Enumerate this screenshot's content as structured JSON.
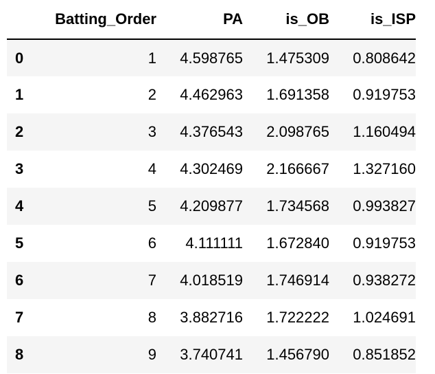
{
  "table": {
    "columns": [
      "",
      "Batting_Order",
      "PA",
      "is_OB",
      "is_ISP"
    ],
    "rows": [
      {
        "index": "0",
        "cells": [
          "1",
          "4.598765",
          "1.475309",
          "0.808642"
        ]
      },
      {
        "index": "1",
        "cells": [
          "2",
          "4.462963",
          "1.691358",
          "0.919753"
        ]
      },
      {
        "index": "2",
        "cells": [
          "3",
          "4.376543",
          "2.098765",
          "1.160494"
        ]
      },
      {
        "index": "3",
        "cells": [
          "4",
          "4.302469",
          "2.166667",
          "1.327160"
        ]
      },
      {
        "index": "4",
        "cells": [
          "5",
          "4.209877",
          "1.734568",
          "0.993827"
        ]
      },
      {
        "index": "5",
        "cells": [
          "6",
          "4.111111",
          "1.672840",
          "0.919753"
        ]
      },
      {
        "index": "6",
        "cells": [
          "7",
          "4.018519",
          "1.746914",
          "0.938272"
        ]
      },
      {
        "index": "7",
        "cells": [
          "8",
          "3.882716",
          "1.722222",
          "1.024691"
        ]
      },
      {
        "index": "8",
        "cells": [
          "9",
          "3.740741",
          "1.456790",
          "0.851852"
        ]
      }
    ]
  }
}
